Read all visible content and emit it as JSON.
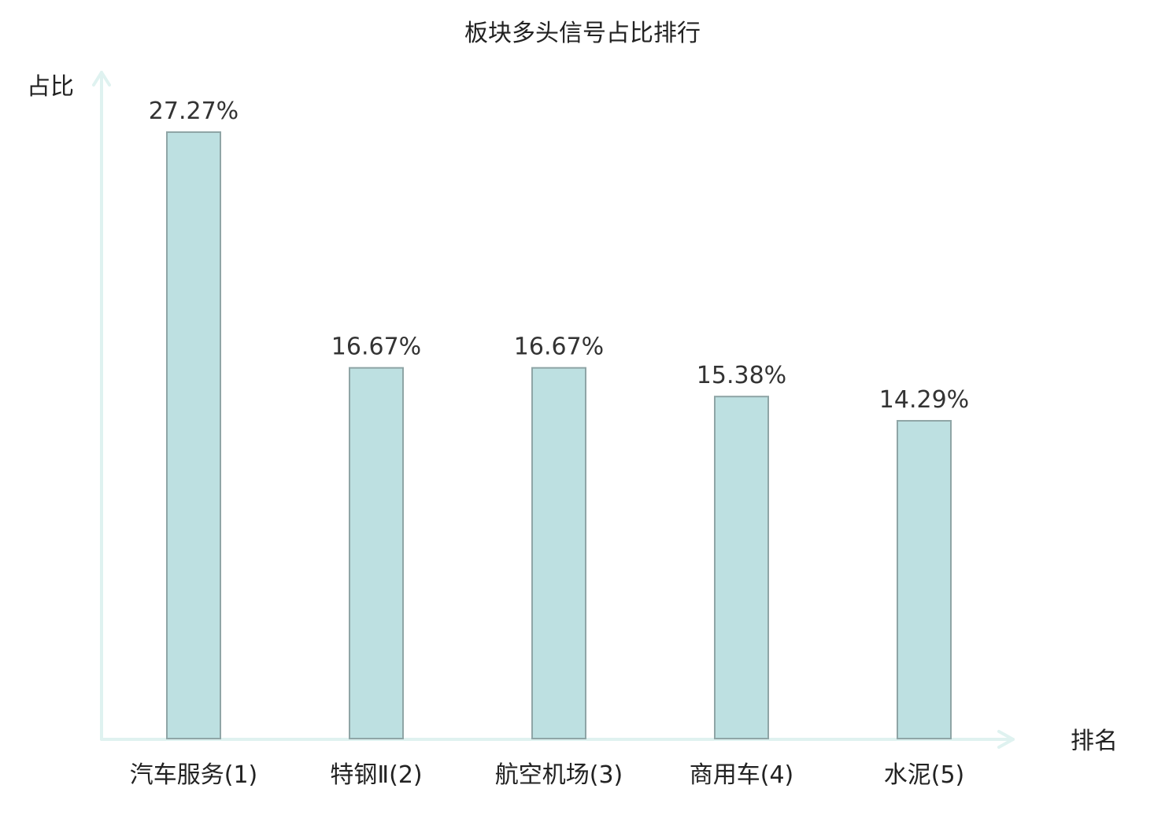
{
  "chart_data": {
    "type": "bar",
    "title": "板块多头信号占比排行",
    "ylabel": "占比",
    "xlabel": "排名",
    "categories": [
      {
        "name": "汽车服务",
        "rank": "(1)",
        "highlight": false
      },
      {
        "name": "特钢Ⅱ",
        "rank": "(2)",
        "highlight": false
      },
      {
        "name": "航空机场",
        "rank": "(3)",
        "highlight": true
      },
      {
        "name": "商用车",
        "rank": "(4)",
        "highlight": false
      },
      {
        "name": "水泥",
        "rank": "(5)",
        "highlight": false
      }
    ],
    "values": [
      27.27,
      16.67,
      16.67,
      15.38,
      14.29
    ],
    "value_labels": [
      "27.27%",
      "16.67%",
      "16.67%",
      "15.38%",
      "14.29%"
    ],
    "ylim": [
      0,
      27.27
    ],
    "grid": false,
    "legend": "none",
    "colors": {
      "bar_fill": "#bde0e1",
      "bar_stroke": "#8fa5a6",
      "axis": "#dff2f0",
      "highlight_text": "#e01010",
      "text": "#222222",
      "value_text": "#333333"
    }
  }
}
